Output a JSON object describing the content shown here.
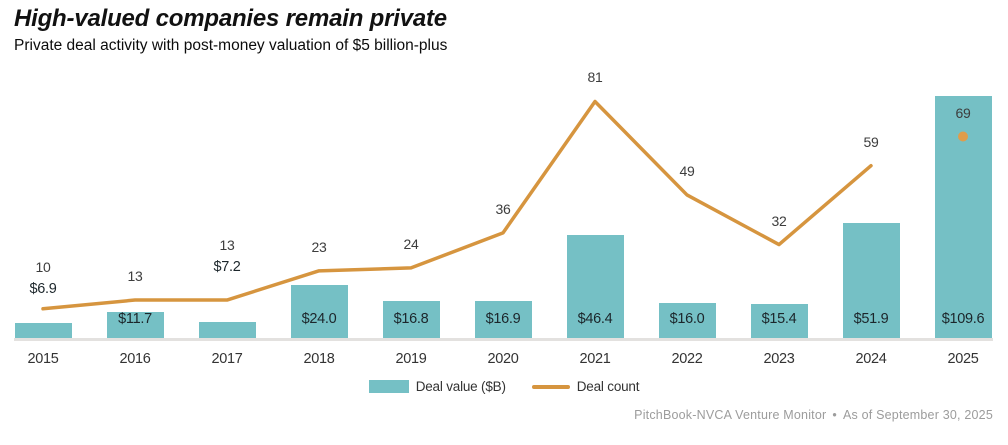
{
  "chart_data": {
    "type": "combo",
    "title": "High-valued companies remain private",
    "subtitle": "Private deal activity with post-money valuation of $5 billion-plus",
    "categories": [
      "2015",
      "2016",
      "2017",
      "2018",
      "2019",
      "2020",
      "2021",
      "2022",
      "2023",
      "2024",
      "2025"
    ],
    "series": [
      {
        "name": "Deal value ($B)",
        "type": "bar",
        "color": "#75c0c5",
        "values": [
          6.9,
          11.7,
          7.2,
          24.0,
          16.8,
          16.9,
          46.4,
          16.0,
          15.4,
          51.9,
          109.6
        ],
        "labels": [
          "$6.9",
          "$11.7",
          "$7.2",
          "$24.0",
          "$16.8",
          "$16.9",
          "$46.4",
          "$16.0",
          "$15.4",
          "$51.9",
          "$109.6"
        ],
        "label_position": [
          "above",
          "inside",
          "above",
          "inside",
          "inside",
          "inside",
          "inside",
          "inside",
          "inside",
          "inside",
          "inside"
        ]
      },
      {
        "name": "Deal count",
        "type": "line",
        "color": "#d6953f",
        "dot_color": "#df9d4b",
        "values": [
          10,
          13,
          13,
          23,
          24,
          36,
          81,
          49,
          32,
          59,
          69
        ],
        "labels": [
          "10",
          "13",
          "13",
          "23",
          "24",
          "36",
          "81",
          "49",
          "32",
          "59",
          "69"
        ],
        "last_point_style": "dot-only"
      }
    ],
    "xlabel": "",
    "ylabel": "",
    "hidden_axes": true,
    "value_axis_range": [
      0,
      110
    ],
    "count_axis_range": [
      0,
      85
    ],
    "grid": false,
    "legend_position": "bottom-center"
  },
  "footer": {
    "source": "PitchBook-NVCA Venture Monitor",
    "bullet": "•",
    "as_of": "As of September 30, 2025"
  }
}
